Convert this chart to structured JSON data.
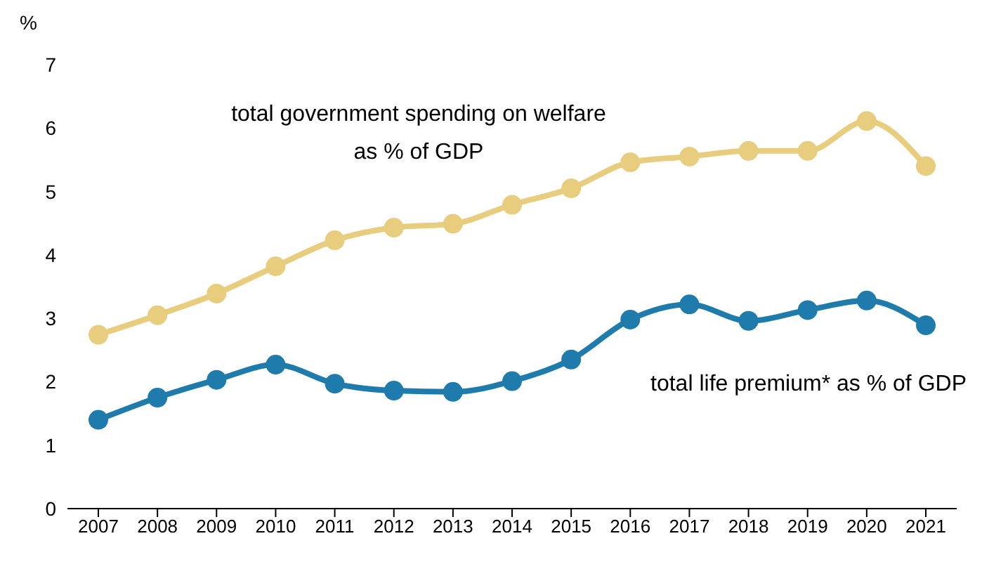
{
  "chart_data": {
    "type": "line",
    "ylabel": "%",
    "categories": [
      "2007",
      "2008",
      "2009",
      "2010",
      "2011",
      "2012",
      "2013",
      "2014",
      "2015",
      "2016",
      "2017",
      "2018",
      "2019",
      "2020",
      "2021"
    ],
    "series": [
      {
        "name": "total government spending on welfare as % of GDP",
        "color": "#e8cd7e",
        "values": [
          2.74,
          3.05,
          3.39,
          3.82,
          4.23,
          4.43,
          4.49,
          4.79,
          5.05,
          5.46,
          5.55,
          5.64,
          5.64,
          6.11,
          5.4
        ]
      },
      {
        "name": "total life premium* as % of GDP",
        "color": "#1f7bab",
        "values": [
          1.4,
          1.75,
          2.03,
          2.27,
          1.97,
          1.86,
          1.84,
          2.01,
          2.35,
          2.98,
          3.22,
          2.96,
          3.13,
          3.28,
          2.89
        ]
      }
    ],
    "ylim": [
      0,
      7
    ],
    "yticks": [
      0,
      1,
      2,
      3,
      4,
      5,
      6,
      7
    ],
    "grid": false,
    "legend": false,
    "marker": "circle",
    "line_style": "solid"
  }
}
